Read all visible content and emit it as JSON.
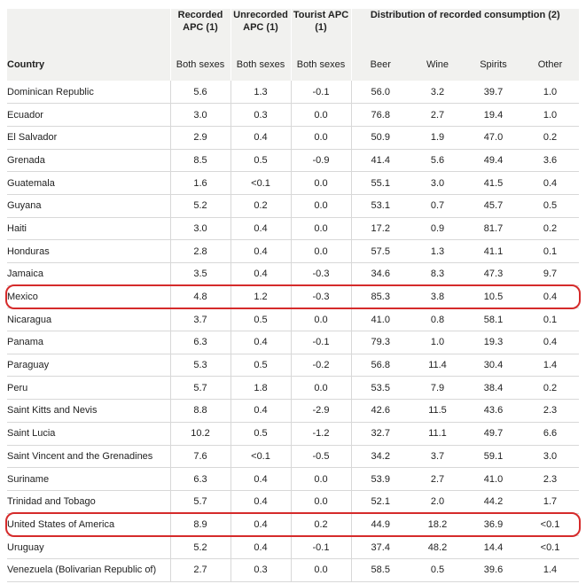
{
  "headers": {
    "country": "Country",
    "recorded_apc": "Recorded APC (1)",
    "unrecorded_apc": "Unrecorded APC (1)",
    "tourist_apc": "Tourist APC (1)",
    "distribution": "Distribution of recorded consumption (2)",
    "both_sexes": "Both sexes",
    "beer": "Beer",
    "wine": "Wine",
    "spirits": "Spirits",
    "other": "Other"
  },
  "rows": [
    {
      "country": "Dominican Republic",
      "recorded": "5.6",
      "unrecorded": "1.3",
      "tourist": "-0.1",
      "beer": "56.0",
      "wine": "3.2",
      "spirits": "39.7",
      "other": "1.0"
    },
    {
      "country": "Ecuador",
      "recorded": "3.0",
      "unrecorded": "0.3",
      "tourist": "0.0",
      "beer": "76.8",
      "wine": "2.7",
      "spirits": "19.4",
      "other": "1.0"
    },
    {
      "country": "El Salvador",
      "recorded": "2.9",
      "unrecorded": "0.4",
      "tourist": "0.0",
      "beer": "50.9",
      "wine": "1.9",
      "spirits": "47.0",
      "other": "0.2"
    },
    {
      "country": "Grenada",
      "recorded": "8.5",
      "unrecorded": "0.5",
      "tourist": "-0.9",
      "beer": "41.4",
      "wine": "5.6",
      "spirits": "49.4",
      "other": "3.6"
    },
    {
      "country": "Guatemala",
      "recorded": "1.6",
      "unrecorded": "<0.1",
      "tourist": "0.0",
      "beer": "55.1",
      "wine": "3.0",
      "spirits": "41.5",
      "other": "0.4"
    },
    {
      "country": "Guyana",
      "recorded": "5.2",
      "unrecorded": "0.2",
      "tourist": "0.0",
      "beer": "53.1",
      "wine": "0.7",
      "spirits": "45.7",
      "other": "0.5"
    },
    {
      "country": "Haiti",
      "recorded": "3.0",
      "unrecorded": "0.4",
      "tourist": "0.0",
      "beer": "17.2",
      "wine": "0.9",
      "spirits": "81.7",
      "other": "0.2"
    },
    {
      "country": "Honduras",
      "recorded": "2.8",
      "unrecorded": "0.4",
      "tourist": "0.0",
      "beer": "57.5",
      "wine": "1.3",
      "spirits": "41.1",
      "other": "0.1"
    },
    {
      "country": "Jamaica",
      "recorded": "3.5",
      "unrecorded": "0.4",
      "tourist": "-0.3",
      "beer": "34.6",
      "wine": "8.3",
      "spirits": "47.3",
      "other": "9.7"
    },
    {
      "country": "Mexico",
      "recorded": "4.8",
      "unrecorded": "1.2",
      "tourist": "-0.3",
      "beer": "85.3",
      "wine": "3.8",
      "spirits": "10.5",
      "other": "0.4"
    },
    {
      "country": "Nicaragua",
      "recorded": "3.7",
      "unrecorded": "0.5",
      "tourist": "0.0",
      "beer": "41.0",
      "wine": "0.8",
      "spirits": "58.1",
      "other": "0.1"
    },
    {
      "country": "Panama",
      "recorded": "6.3",
      "unrecorded": "0.4",
      "tourist": "-0.1",
      "beer": "79.3",
      "wine": "1.0",
      "spirits": "19.3",
      "other": "0.4"
    },
    {
      "country": "Paraguay",
      "recorded": "5.3",
      "unrecorded": "0.5",
      "tourist": "-0.2",
      "beer": "56.8",
      "wine": "11.4",
      "spirits": "30.4",
      "other": "1.4"
    },
    {
      "country": "Peru",
      "recorded": "5.7",
      "unrecorded": "1.8",
      "tourist": "0.0",
      "beer": "53.5",
      "wine": "7.9",
      "spirits": "38.4",
      "other": "0.2"
    },
    {
      "country": "Saint Kitts and Nevis",
      "recorded": "8.8",
      "unrecorded": "0.4",
      "tourist": "-2.9",
      "beer": "42.6",
      "wine": "11.5",
      "spirits": "43.6",
      "other": "2.3"
    },
    {
      "country": "Saint Lucia",
      "recorded": "10.2",
      "unrecorded": "0.5",
      "tourist": "-1.2",
      "beer": "32.7",
      "wine": "11.1",
      "spirits": "49.7",
      "other": "6.6"
    },
    {
      "country": "Saint Vincent and the Grenadines",
      "recorded": "7.6",
      "unrecorded": "<0.1",
      "tourist": "-0.5",
      "beer": "34.2",
      "wine": "3.7",
      "spirits": "59.1",
      "other": "3.0"
    },
    {
      "country": "Suriname",
      "recorded": "6.3",
      "unrecorded": "0.4",
      "tourist": "0.0",
      "beer": "53.9",
      "wine": "2.7",
      "spirits": "41.0",
      "other": "2.3"
    },
    {
      "country": "Trinidad and Tobago",
      "recorded": "5.7",
      "unrecorded": "0.4",
      "tourist": "0.0",
      "beer": "52.1",
      "wine": "2.0",
      "spirits": "44.2",
      "other": "1.7"
    },
    {
      "country": "United States of America",
      "recorded": "8.9",
      "unrecorded": "0.4",
      "tourist": "0.2",
      "beer": "44.9",
      "wine": "18.2",
      "spirits": "36.9",
      "other": "<0.1"
    },
    {
      "country": "Uruguay",
      "recorded": "5.2",
      "unrecorded": "0.4",
      "tourist": "-0.1",
      "beer": "37.4",
      "wine": "48.2",
      "spirits": "14.4",
      "other": "<0.1"
    },
    {
      "country": "Venezuela (Bolivarian Republic of)",
      "recorded": "2.7",
      "unrecorded": "0.3",
      "tourist": "0.0",
      "beer": "58.5",
      "wine": "0.5",
      "spirits": "39.6",
      "other": "1.4"
    }
  ],
  "highlighted_rows": [
    "Mexico",
    "United States of America"
  ],
  "colors": {
    "header_bg": "#f1f1ef",
    "row_border": "#d8d8d8",
    "highlight": "#d52b2b"
  }
}
